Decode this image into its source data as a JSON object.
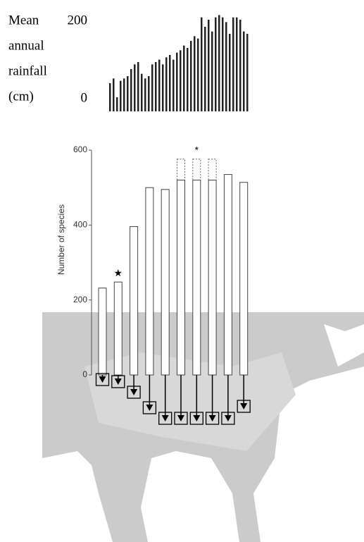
{
  "chart_data": [
    {
      "type": "bar",
      "ylabel": [
        "Mean",
        "annual",
        "rainfall",
        "(cm)"
      ],
      "values": [
        60,
        70,
        30,
        65,
        70,
        75,
        90,
        100,
        105,
        80,
        70,
        75,
        100,
        105,
        110,
        100,
        115,
        120,
        110,
        125,
        130,
        140,
        135,
        150,
        160,
        155,
        200,
        180,
        195,
        170,
        200,
        205,
        200,
        190,
        165,
        200,
        200,
        195,
        170,
        165
      ],
      "color": "#222222",
      "ylim": [
        0,
        210
      ],
      "yticks": [
        0,
        200
      ]
    },
    {
      "type": "bar",
      "ylabel": "Number of species",
      "values": [
        232,
        248,
        396,
        500,
        495,
        520,
        520,
        520,
        535,
        514
      ],
      "extended_values": [
        null,
        null,
        null,
        null,
        null,
        576,
        576,
        576,
        null,
        null
      ],
      "annotations": [
        {
          "text": "★",
          "bar": 1
        },
        {
          "text": "*",
          "bar": 6
        }
      ],
      "color": "#ffffff",
      "ylim": [
        0,
        600
      ],
      "yticks": [
        0,
        200,
        400,
        600
      ]
    }
  ]
}
